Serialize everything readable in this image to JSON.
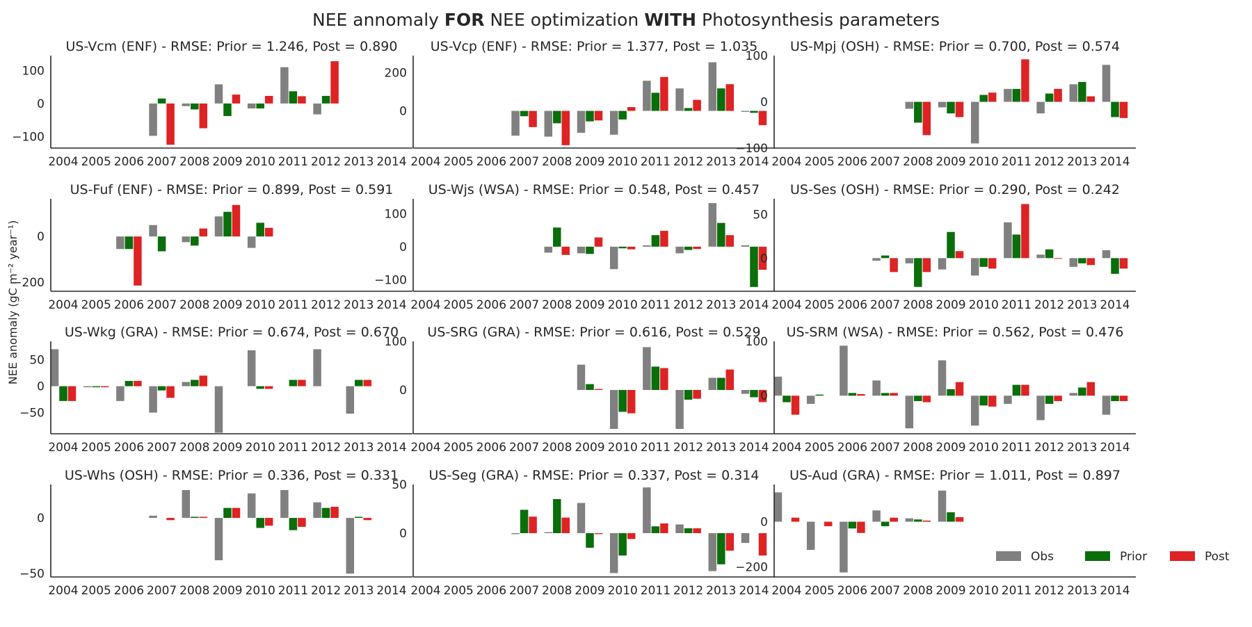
{
  "figure": {
    "title_parts": [
      {
        "text": "NEE annomaly ",
        "bold": false
      },
      {
        "text": "FOR",
        "bold": true
      },
      {
        "text": " NEE optimization ",
        "bold": false
      },
      {
        "text": "WITH",
        "bold": true
      },
      {
        "text": " Photosynthesis parameters",
        "bold": false
      }
    ],
    "ylabel": "NEE anomaly (gC m⁻² year⁻¹)"
  },
  "colors": {
    "Obs": "#808080",
    "Prior": "#0a6e0a",
    "Post": "#dd2323",
    "text": "#262626",
    "axis": "#262626"
  },
  "legend": {
    "entries": [
      "Obs",
      "Prior",
      "Post"
    ],
    "placement": "lower-right of last panel"
  },
  "chart_data": [
    {
      "type": "bar",
      "title": "US-Vcm (ENF) - RMSE: Prior = 1.246, Post = 0.890",
      "categories": [
        "2004",
        "2005",
        "2006",
        "2007",
        "2008",
        "2009",
        "2010",
        "2011",
        "2012",
        "2013",
        "2014"
      ],
      "ylim": [
        -135,
        145
      ],
      "yticks": [
        -100,
        0,
        100
      ],
      "series": [
        {
          "name": "Obs",
          "values": [
            null,
            null,
            null,
            -98,
            -8,
            58,
            -15,
            110,
            -33,
            null,
            null
          ]
        },
        {
          "name": "Prior",
          "values": [
            null,
            null,
            null,
            15,
            -18,
            -38,
            -15,
            37,
            23,
            null,
            null
          ]
        },
        {
          "name": "Post",
          "values": [
            null,
            null,
            null,
            -125,
            -75,
            27,
            23,
            22,
            128,
            null,
            null
          ]
        }
      ]
    },
    {
      "type": "bar",
      "title": "US-Vcp (ENF) - RMSE: Prior = 1.377, Post = 1.035",
      "categories": [
        "2004",
        "2005",
        "2006",
        "2007",
        "2008",
        "2009",
        "2010",
        "2011",
        "2012",
        "2013",
        "2014"
      ],
      "ylim": [
        -195,
        290
      ],
      "yticks": [
        0,
        200
      ],
      "series": [
        {
          "name": "Obs",
          "values": [
            null,
            null,
            null,
            -130,
            -135,
            -115,
            -125,
            158,
            118,
            255,
            -5
          ]
        },
        {
          "name": "Prior",
          "values": [
            null,
            null,
            null,
            -28,
            -65,
            -55,
            -45,
            95,
            15,
            118,
            -10
          ]
        },
        {
          "name": "Post",
          "values": [
            null,
            null,
            null,
            -85,
            -180,
            -50,
            20,
            178,
            58,
            140,
            -75
          ]
        }
      ]
    },
    {
      "type": "bar",
      "title": "US-Mpj (OSH) - RMSE: Prior = 0.700, Post = 0.574",
      "categories": [
        "2004",
        "2005",
        "2006",
        "2007",
        "2008",
        "2009",
        "2010",
        "2011",
        "2012",
        "2013",
        "2014"
      ],
      "ylim": [
        -100,
        100
      ],
      "yticks": [
        -100,
        0,
        100
      ],
      "series": [
        {
          "name": "Obs",
          "values": [
            null,
            null,
            null,
            null,
            -15,
            -12,
            -90,
            28,
            -25,
            38,
            80
          ]
        },
        {
          "name": "Prior",
          "values": [
            null,
            null,
            null,
            null,
            -45,
            -25,
            15,
            28,
            18,
            43,
            -33
          ]
        },
        {
          "name": "Post",
          "values": [
            null,
            null,
            null,
            null,
            -72,
            -33,
            20,
            92,
            28,
            12,
            -35
          ]
        }
      ]
    },
    {
      "type": "bar",
      "title": "US-Fuf (ENF) - RMSE: Prior = 0.899, Post = 0.591",
      "categories": [
        "2004",
        "2005",
        "2006",
        "2007",
        "2008",
        "2009",
        "2010",
        "2011",
        "2012",
        "2013",
        "2014"
      ],
      "ylim": [
        -240,
        165
      ],
      "yticks": [
        -200,
        0
      ],
      "series": [
        {
          "name": "Obs",
          "values": [
            null,
            null,
            -55,
            50,
            -25,
            88,
            -50,
            null,
            null,
            null,
            null
          ]
        },
        {
          "name": "Prior",
          "values": [
            null,
            null,
            -55,
            -65,
            -40,
            108,
            60,
            null,
            null,
            null,
            null
          ]
        },
        {
          "name": "Post",
          "values": [
            null,
            null,
            -215,
            null,
            35,
            138,
            38,
            null,
            null,
            null,
            null
          ]
        }
      ]
    },
    {
      "type": "bar",
      "title": "US-Wjs (WSA) - RMSE: Prior = 0.548, Post = 0.457",
      "categories": [
        "2004",
        "2005",
        "2006",
        "2007",
        "2008",
        "2009",
        "2010",
        "2011",
        "2012",
        "2013",
        "2014"
      ],
      "ylim": [
        -135,
        145
      ],
      "yticks": [
        -100,
        0,
        100
      ],
      "series": [
        {
          "name": "Obs",
          "values": [
            null,
            null,
            null,
            null,
            -18,
            -20,
            -68,
            4,
            -20,
            132,
            4
          ]
        },
        {
          "name": "Prior",
          "values": [
            null,
            null,
            null,
            null,
            58,
            -22,
            -5,
            35,
            -10,
            72,
            -122
          ]
        },
        {
          "name": "Post",
          "values": [
            null,
            null,
            null,
            null,
            -25,
            28,
            -8,
            48,
            -7,
            35,
            -70
          ]
        }
      ]
    },
    {
      "type": "bar",
      "title": "US-Ses (OSH) - RMSE: Prior = 0.290, Post = 0.242",
      "categories": [
        "2004",
        "2005",
        "2006",
        "2007",
        "2008",
        "2009",
        "2010",
        "2011",
        "2012",
        "2013",
        "2014"
      ],
      "ylim": [
        -38,
        68
      ],
      "yticks": [
        0,
        50
      ],
      "series": [
        {
          "name": "Obs",
          "values": [
            null,
            null,
            null,
            -3,
            -6,
            -13,
            -20,
            41,
            4,
            -10,
            9
          ]
        },
        {
          "name": "Prior",
          "values": [
            null,
            null,
            null,
            3,
            -33,
            30,
            -10,
            27,
            10,
            -6,
            -18
          ]
        },
        {
          "name": "Post",
          "values": [
            null,
            null,
            null,
            -16,
            -16,
            8,
            -12,
            62,
            0,
            -8,
            -12
          ]
        }
      ]
    },
    {
      "type": "bar",
      "title": "US-Wkg (GRA) - RMSE: Prior = 0.674, Post = 0.670",
      "categories": [
        "2004",
        "2005",
        "2006",
        "2007",
        "2008",
        "2009",
        "2010",
        "2011",
        "2012",
        "2013",
        "2014"
      ],
      "ylim": [
        -90,
        85
      ],
      "yticks": [
        -50,
        0,
        50
      ],
      "series": [
        {
          "name": "Obs",
          "values": [
            70,
            -2,
            -28,
            -50,
            8,
            -88,
            68,
            null,
            70,
            -52,
            null
          ]
        },
        {
          "name": "Prior",
          "values": [
            -28,
            -2,
            10,
            -8,
            12,
            null,
            -5,
            12,
            null,
            12,
            null
          ]
        },
        {
          "name": "Post",
          "values": [
            -28,
            -2,
            10,
            -22,
            20,
            null,
            -5,
            12,
            null,
            12,
            null
          ]
        }
      ]
    },
    {
      "type": "bar",
      "title": "US-SRG (GRA) - RMSE: Prior = 0.616, Post = 0.529",
      "categories": [
        "2004",
        "2005",
        "2006",
        "2007",
        "2008",
        "2009",
        "2010",
        "2011",
        "2012",
        "2013",
        "2014"
      ],
      "ylim": [
        -90,
        100
      ],
      "yticks": [
        0,
        100
      ],
      "series": [
        {
          "name": "Obs",
          "values": [
            null,
            null,
            null,
            null,
            null,
            52,
            -80,
            88,
            -80,
            25,
            -8
          ]
        },
        {
          "name": "Prior",
          "values": [
            null,
            null,
            null,
            null,
            null,
            12,
            -45,
            48,
            -20,
            25,
            -15
          ]
        },
        {
          "name": "Post",
          "values": [
            null,
            null,
            null,
            null,
            null,
            2,
            -48,
            45,
            -18,
            42,
            -25
          ]
        }
      ]
    },
    {
      "type": "bar",
      "title": "US-SRM (WSA) - RMSE: Prior = 0.562, Post = 0.476",
      "categories": [
        "2004",
        "2005",
        "2006",
        "2007",
        "2008",
        "2009",
        "2010",
        "2011",
        "2012",
        "2013",
        "2014"
      ],
      "ylim": [
        -70,
        100
      ],
      "yticks": [
        0,
        100
      ],
      "series": [
        {
          "name": "Obs",
          "values": [
            35,
            -15,
            92,
            28,
            -60,
            65,
            -55,
            -15,
            -45,
            5,
            -35
          ]
        },
        {
          "name": "Prior",
          "values": [
            -12,
            2,
            5,
            5,
            -10,
            12,
            -18,
            20,
            -15,
            15,
            -10
          ]
        },
        {
          "name": "Post",
          "values": [
            -35,
            null,
            3,
            5,
            -12,
            25,
            -20,
            20,
            -10,
            25,
            -10
          ]
        }
      ]
    },
    {
      "type": "bar",
      "title": "US-Whs (OSH) - RMSE: Prior = 0.336, Post = 0.331",
      "categories": [
        "2004",
        "2005",
        "2006",
        "2007",
        "2008",
        "2009",
        "2010",
        "2011",
        "2012",
        "2013",
        "2014"
      ],
      "ylim": [
        -53,
        30
      ],
      "yticks": [
        -50,
        0
      ],
      "series": [
        {
          "name": "Obs",
          "values": [
            null,
            null,
            null,
            2,
            25,
            -38,
            22,
            25,
            14,
            -50,
            null
          ]
        },
        {
          "name": "Prior",
          "values": [
            null,
            null,
            null,
            null,
            1,
            9,
            -9,
            -11,
            9,
            1,
            null
          ]
        },
        {
          "name": "Post",
          "values": [
            null,
            null,
            null,
            -2,
            1,
            9,
            -7,
            -8,
            10,
            -2,
            null
          ]
        }
      ]
    },
    {
      "type": "bar",
      "title": "US-Seg (GRA) - RMSE: Prior = 0.337, Post = 0.314",
      "categories": [
        "2004",
        "2005",
        "2006",
        "2007",
        "2008",
        "2009",
        "2010",
        "2011",
        "2012",
        "2013",
        "2014"
      ],
      "ylim": [
        -45,
        50
      ],
      "yticks": [
        0,
        50
      ],
      "series": [
        {
          "name": "Obs",
          "values": [
            null,
            null,
            null,
            -1,
            1,
            31,
            -41,
            47,
            9,
            -39,
            -10
          ]
        },
        {
          "name": "Prior",
          "values": [
            null,
            null,
            null,
            24,
            35,
            -15,
            -23,
            7,
            5,
            -32,
            null
          ]
        },
        {
          "name": "Post",
          "values": [
            null,
            null,
            null,
            17,
            16,
            -1,
            -6,
            10,
            5,
            -18,
            -23
          ]
        }
      ]
    },
    {
      "type": "bar",
      "title": "US-Aud (GRA) - RMSE: Prior = 1.011, Post = 0.897",
      "categories": [
        "2004",
        "2005",
        "2006",
        "2007",
        "2008",
        "2009",
        "2010",
        "2011",
        "2012",
        "2013",
        "2014"
      ],
      "ylim": [
        -245,
        165
      ],
      "yticks": [
        -200,
        0
      ],
      "series": [
        {
          "name": "Obs",
          "values": [
            130,
            -125,
            -225,
            50,
            15,
            138,
            null,
            null,
            null,
            null,
            null
          ]
        },
        {
          "name": "Prior",
          "values": [
            null,
            null,
            -30,
            -20,
            10,
            42,
            null,
            null,
            null,
            null,
            null
          ]
        },
        {
          "name": "Post",
          "values": [
            18,
            -20,
            -50,
            18,
            5,
            20,
            null,
            null,
            null,
            null,
            null
          ]
        }
      ]
    }
  ]
}
